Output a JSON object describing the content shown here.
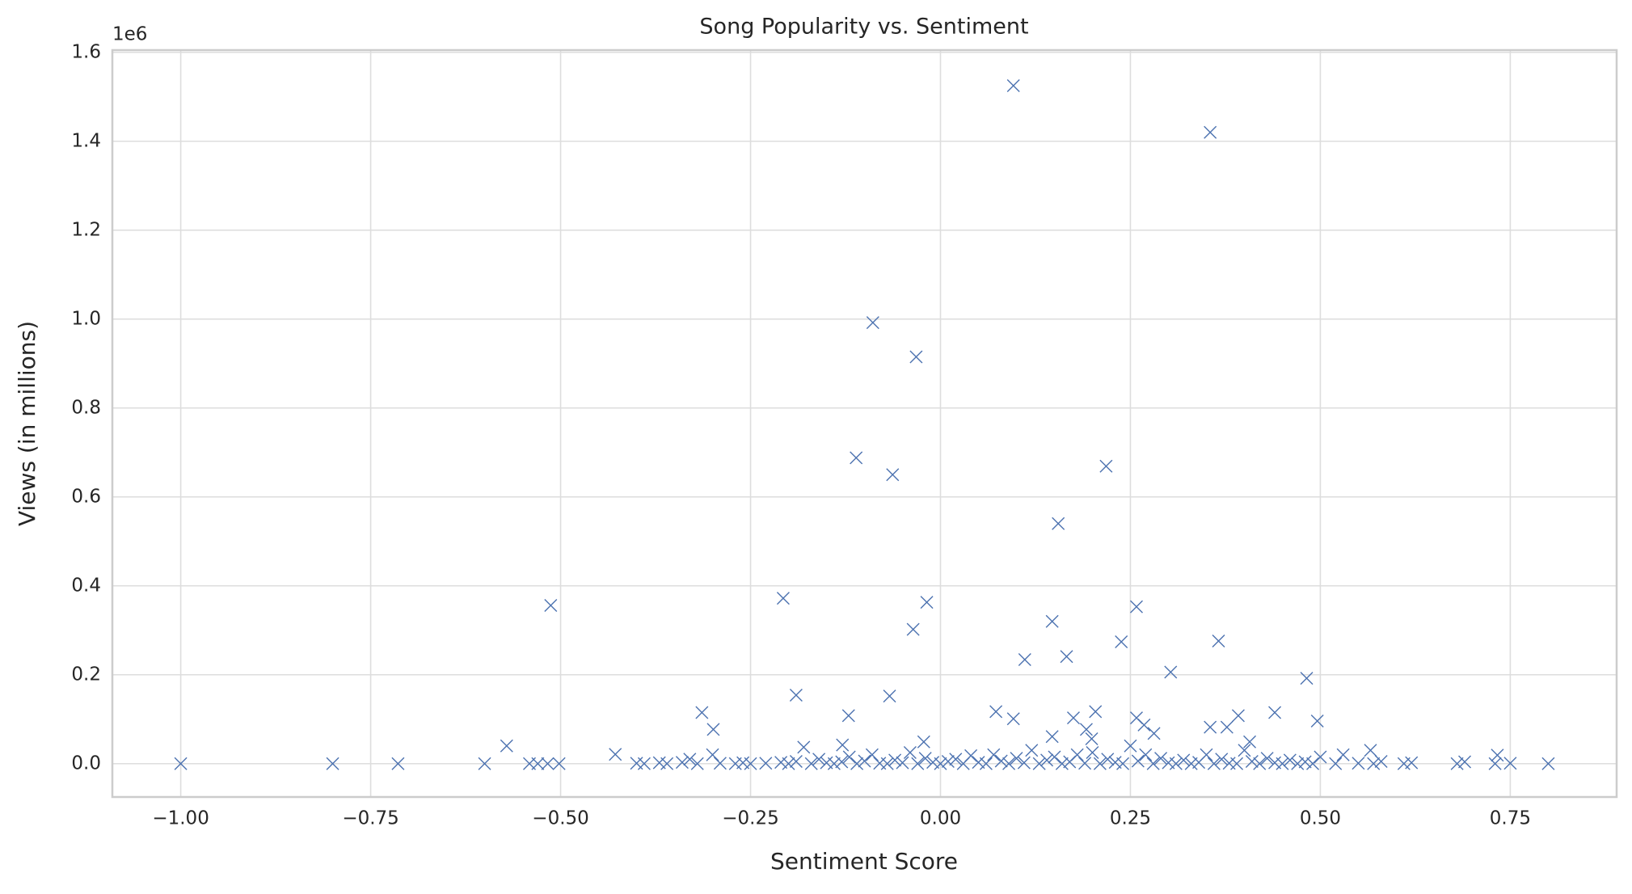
{
  "chart_data": {
    "type": "scatter",
    "title": "Song Popularity vs. Sentiment",
    "x_label": "Sentiment Score",
    "y_label": "Views (in millions)",
    "y_offset_label": "1e6",
    "color": "#4c72b0",
    "marker": "x",
    "grid": true,
    "xlim": [
      -1.09,
      0.89
    ],
    "ylim": [
      -0.075,
      1.605
    ],
    "xticks": [
      {
        "value": -1,
        "label": "−1.00"
      },
      {
        "value": -0.75,
        "label": "−0.75"
      },
      {
        "value": -0.5,
        "label": "−0.50"
      },
      {
        "value": -0.25,
        "label": "−0.25"
      },
      {
        "value": 0,
        "label": "0.00"
      },
      {
        "value": 0.25,
        "label": "0.25"
      },
      {
        "value": 0.5,
        "label": "0.50"
      },
      {
        "value": 0.75,
        "label": "0.75"
      }
    ],
    "yticks": [
      {
        "value": 0,
        "label": "0.0"
      },
      0.2,
      0.4,
      0.6,
      0.8,
      {
        "value": 1,
        "label": "1.0"
      },
      1.2,
      1.4,
      1.6
    ],
    "x": [
      0.096,
      0.355,
      -0.089,
      -0.032,
      -0.111,
      -0.063,
      0.218,
      0.155,
      -0.513,
      -0.207,
      -0.018,
      -0.036,
      0.147,
      0.258,
      0.238,
      0.366,
      0.111,
      0.166,
      0.303,
      0.482,
      -0.19,
      -0.067,
      -0.314,
      -0.299,
      -0.121,
      0.073,
      0.096,
      0.204,
      0.44,
      0.392,
      0.496,
      0.175,
      0.258,
      0.192,
      0.268,
      0.147,
      0.199,
      0.281,
      0.355,
      0.377,
      -0.571,
      -0.428,
      -0.18,
      -0.129,
      -0.022,
      0.407,
      0.566,
      0.733,
      -1.0,
      -0.8,
      -0.714,
      -0.6,
      -0.541,
      -0.53,
      -0.517,
      -0.502,
      -0.4,
      -0.39,
      -0.37,
      -0.36,
      -0.34,
      -0.33,
      -0.32,
      -0.3,
      -0.29,
      -0.27,
      -0.26,
      -0.25,
      -0.23,
      -0.21,
      -0.2,
      -0.19,
      -0.17,
      -0.16,
      -0.15,
      -0.14,
      -0.13,
      -0.12,
      -0.11,
      -0.1,
      -0.09,
      -0.08,
      -0.07,
      -0.06,
      -0.05,
      -0.04,
      -0.03,
      -0.02,
      -0.01,
      0.0,
      0.01,
      0.02,
      0.03,
      0.04,
      0.05,
      0.06,
      0.07,
      0.08,
      0.09,
      0.1,
      0.11,
      0.12,
      0.13,
      0.14,
      0.15,
      0.16,
      0.17,
      0.18,
      0.19,
      0.2,
      0.21,
      0.22,
      0.23,
      0.24,
      0.25,
      0.26,
      0.27,
      0.28,
      0.29,
      0.3,
      0.31,
      0.32,
      0.33,
      0.34,
      0.35,
      0.36,
      0.37,
      0.38,
      0.39,
      0.4,
      0.41,
      0.42,
      0.43,
      0.44,
      0.45,
      0.46,
      0.47,
      0.48,
      0.49,
      0.5,
      0.52,
      0.53,
      0.55,
      0.57,
      0.58,
      0.61,
      0.62,
      0.68,
      0.69,
      0.73,
      0.75,
      0.8
    ],
    "values": [
      1.525,
      1.42,
      0.992,
      0.915,
      0.688,
      0.65,
      0.669,
      0.54,
      0.356,
      0.372,
      0.363,
      0.302,
      0.32,
      0.353,
      0.274,
      0.276,
      0.234,
      0.241,
      0.206,
      0.192,
      0.154,
      0.152,
      0.115,
      0.077,
      0.108,
      0.117,
      0.101,
      0.117,
      0.115,
      0.108,
      0.096,
      0.103,
      0.103,
      0.077,
      0.087,
      0.061,
      0.056,
      0.068,
      0.082,
      0.082,
      0.04,
      0.021,
      0.037,
      0.042,
      0.049,
      0.049,
      0.03,
      0.019,
      0,
      0,
      0,
      0,
      0,
      0,
      0,
      0,
      0.001,
      0,
      0.002,
      0,
      0.003,
      0.01,
      0,
      0.02,
      0.001,
      0,
      0.002,
      0,
      0.001,
      0.003,
      0,
      0.005,
      0,
      0.01,
      0.002,
      0,
      0.004,
      0.015,
      0,
      0.006,
      0.02,
      0.001,
      0,
      0.008,
      0.002,
      0.025,
      0,
      0.012,
      0.003,
      0,
      0.005,
      0.01,
      0,
      0.018,
      0.003,
      0,
      0.02,
      0.006,
      0,
      0.012,
      0.002,
      0.03,
      0,
      0.008,
      0.015,
      0,
      0.004,
      0.02,
      0.001,
      0.025,
      0,
      0.01,
      0.003,
      0,
      0.04,
      0.006,
      0.02,
      0,
      0.012,
      0.002,
      0,
      0.008,
      0,
      0.003,
      0.02,
      0,
      0.01,
      0.001,
      0,
      0.03,
      0.005,
      0,
      0.012,
      0.002,
      0,
      0.008,
      0,
      0.004,
      0,
      0.015,
      0,
      0.02,
      0.001,
      0,
      0.005,
      0,
      0.002,
      0,
      0.004,
      0,
      0.001,
      0
    ]
  }
}
